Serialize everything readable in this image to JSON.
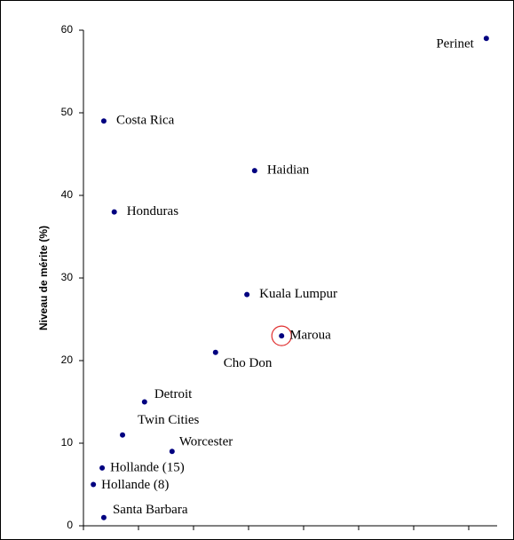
{
  "chart_data": {
    "type": "scatter",
    "y_label": "Niveau de mérite (%)",
    "x": [
      7.32,
      0.37,
      3.11,
      0.56,
      2.97,
      3.6,
      2.4,
      1.11,
      0.71,
      1.61,
      0.34,
      0.18,
      0.37
    ],
    "values": [
      59,
      49,
      43,
      38,
      28,
      23,
      21,
      15,
      11,
      9,
      7,
      5,
      1
    ],
    "labels": [
      "Perinet",
      "Costa Rica",
      "Haidian",
      "Honduras",
      "Kuala Lumpur",
      "Maroua",
      "Cho Don",
      "Detroit",
      "Twin Cities",
      "Worcester",
      "Hollande (15)",
      "Hollande (8)",
      "Santa Barbara"
    ],
    "color": "#000080",
    "highlighted": 5,
    "highlight_color": "#e03030",
    "xlim": [
      0,
      7.5
    ],
    "xticks": [
      0,
      1,
      2,
      3,
      4,
      5,
      6,
      7
    ],
    "ylim": [
      0,
      60
    ],
    "yticks": [
      0,
      10,
      20,
      30,
      40,
      50,
      60
    ]
  }
}
